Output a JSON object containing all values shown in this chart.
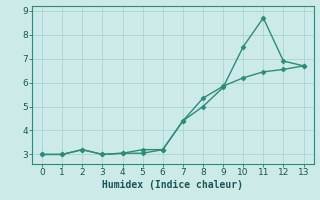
{
  "line1_x": [
    0,
    1,
    2,
    3,
    4,
    5,
    6,
    7,
    8,
    9,
    10,
    11,
    12,
    13
  ],
  "line1_y": [
    3.0,
    3.0,
    3.2,
    3.0,
    3.05,
    3.2,
    3.2,
    4.4,
    5.0,
    5.8,
    7.5,
    8.7,
    6.9,
    6.7
  ],
  "line2_x": [
    0,
    1,
    2,
    3,
    4,
    5,
    6,
    7,
    8,
    9,
    10,
    11,
    12,
    13
  ],
  "line2_y": [
    3.0,
    3.0,
    3.2,
    3.0,
    3.05,
    3.05,
    3.2,
    4.4,
    5.35,
    5.85,
    6.2,
    6.45,
    6.55,
    6.7
  ],
  "line_color": "#2e8b7a",
  "bg_color": "#cceae8",
  "grid_color": "#aad4d0",
  "xlabel": "Humidex (Indice chaleur)",
  "xlim": [
    -0.5,
    13.5
  ],
  "ylim": [
    2.6,
    9.2
  ],
  "yticks": [
    3,
    4,
    5,
    6,
    7,
    8,
    9
  ],
  "xticks": [
    0,
    1,
    2,
    3,
    4,
    5,
    6,
    7,
    8,
    9,
    10,
    11,
    12,
    13
  ],
  "marker": "D",
  "markersize": 2.5,
  "linewidth": 1.0,
  "xlabel_fontsize": 7,
  "tick_fontsize": 6.5,
  "xlabel_color": "#1a5555",
  "tick_color": "#1a5555",
  "spine_color": "#2e8b7a"
}
